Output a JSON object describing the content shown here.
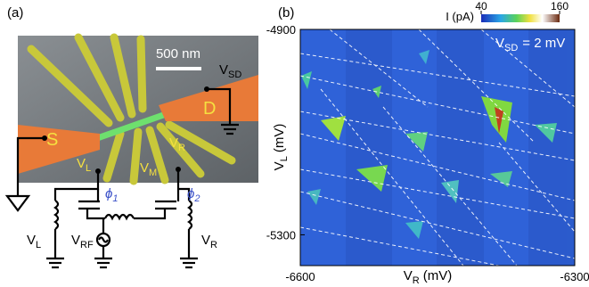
{
  "panel_a": {
    "label": "(a)",
    "scale_bar": "500 nm",
    "contacts": {
      "source": "S",
      "drain": "D"
    },
    "bias": {
      "main": "V",
      "sub": "SD"
    },
    "gates": [
      {
        "main": "V",
        "sub": "L"
      },
      {
        "main": "V",
        "sub": "M"
      },
      {
        "main": "V",
        "sub": "R"
      }
    ],
    "phases": [
      {
        "main": "ϕ",
        "sub": "1"
      },
      {
        "main": "ϕ",
        "sub": "2"
      }
    ],
    "sources": [
      {
        "main": "V",
        "sub": "L"
      },
      {
        "main": "V",
        "sub": "RF"
      },
      {
        "main": "V",
        "sub": "R"
      }
    ]
  },
  "panel_b": {
    "label": "(b)",
    "annotation": {
      "main": "V",
      "sub": "SD",
      "rest": "= 2 mV"
    },
    "x_label": {
      "main": "V",
      "sub": "R",
      "unit": "(mV)"
    },
    "y_label": {
      "main": "V",
      "sub": "L",
      "unit": "(mV)"
    },
    "xlim": [
      -6600,
      -6300
    ],
    "xticks": [
      -6600,
      -6300
    ],
    "ylim": [
      -4900,
      -5360
    ],
    "yticks": [
      -4900,
      -5300
    ],
    "colorbar": {
      "label": "I (pA)",
      "lim": [
        40,
        160
      ],
      "ticks": [
        40,
        160
      ]
    }
  }
}
